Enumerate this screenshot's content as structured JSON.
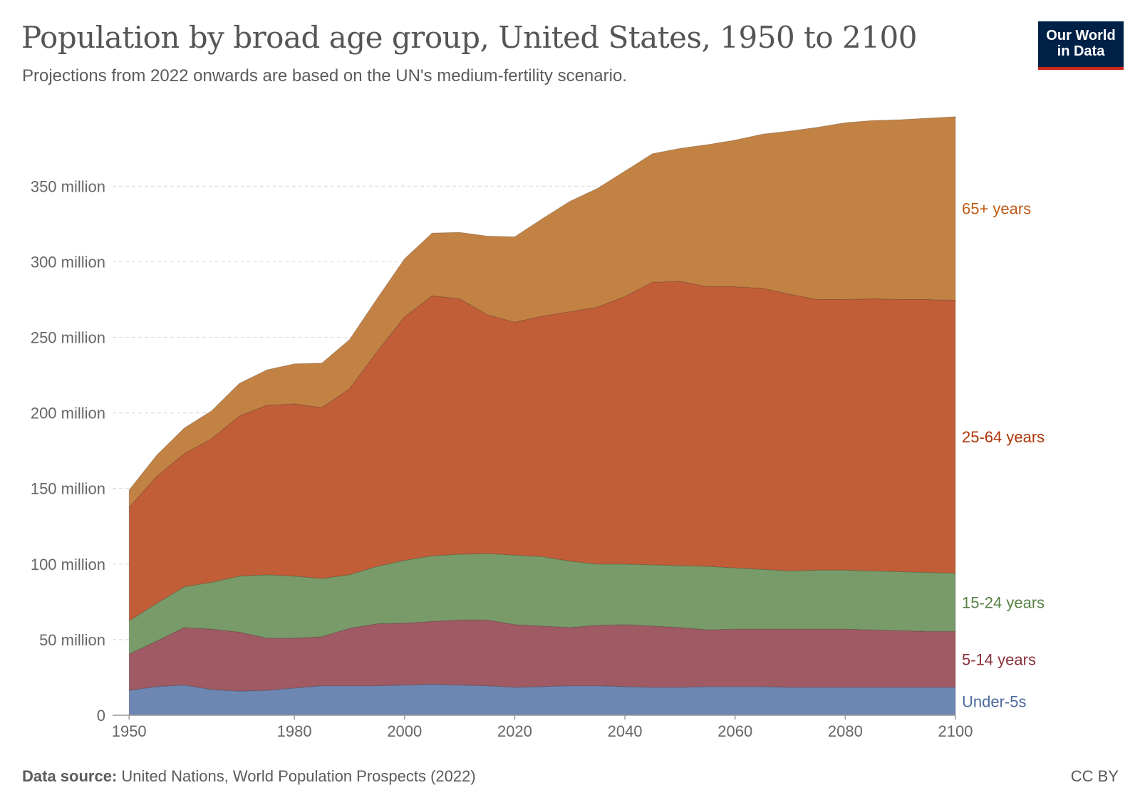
{
  "header": {
    "title": "Population by broad age group, United States, 1950 to 2100",
    "subtitle": "Projections from 2022 onwards are based on the UN's medium-fertility scenario.",
    "logo_line1": "Our World",
    "logo_line2": "in Data"
  },
  "footer": {
    "source_label": "Data source:",
    "source_text": " United Nations, World Population Prospects (2022)",
    "license": "CC BY"
  },
  "colors": {
    "under5": "#6d87b2",
    "age5_14": "#a05a63",
    "age15_24": "#789b69",
    "age25_64": "#c15e38",
    "age65plus": "#c28244",
    "label_under5": "#4c6a9c",
    "label_5_14": "#883039",
    "label_15_24": "#578145",
    "label_25_64": "#b13507",
    "label_65plus": "#be5915"
  },
  "chart_data": {
    "type": "area",
    "stacked": true,
    "title": "Population by broad age group, United States, 1950 to 2100",
    "x": [
      1950,
      1955,
      1960,
      1965,
      1970,
      1975,
      1980,
      1985,
      1990,
      1995,
      2000,
      2005,
      2010,
      2015,
      2020,
      2025,
      2030,
      2035,
      2040,
      2045,
      2050,
      2055,
      2060,
      2065,
      2070,
      2075,
      2080,
      2085,
      2090,
      2095,
      2100
    ],
    "xticks": [
      "1950",
      "1980",
      "2000",
      "2020",
      "2040",
      "2060",
      "2080",
      "2100"
    ],
    "yticks": [
      "0",
      "50 million",
      "100 million",
      "150 million",
      "200 million",
      "250 million",
      "300 million",
      "350 million"
    ],
    "ylim": [
      0,
      394
    ],
    "grid": true,
    "legend": "inline-right",
    "series": [
      {
        "name": "Under-5s",
        "values": [
          16.5,
          19,
          20,
          17,
          16,
          16.5,
          18,
          19.5,
          19.5,
          19.5,
          20,
          20.5,
          20,
          19.5,
          18.5,
          19,
          19.5,
          19.5,
          19,
          18.5,
          18.5,
          19,
          19,
          19,
          18.5,
          18.5,
          18.5,
          18.5,
          18.5,
          18.5,
          18.5
        ]
      },
      {
        "name": "5-14 years",
        "values": [
          24,
          30,
          38,
          40,
          39,
          34.5,
          33,
          32.5,
          38,
          41,
          41,
          41.5,
          43,
          43.5,
          41.5,
          40,
          38.5,
          40,
          41,
          40.5,
          39.5,
          37.5,
          38,
          38,
          38.5,
          38.5,
          38.5,
          38,
          37.5,
          37,
          37
        ]
      },
      {
        "name": "15-24 years",
        "values": [
          22,
          25,
          27,
          31,
          37,
          42,
          41,
          38.5,
          35.5,
          38,
          41.5,
          43.5,
          43.5,
          44,
          46,
          46,
          44,
          40.5,
          40,
          40.5,
          41,
          42,
          40.5,
          39.5,
          38.5,
          39,
          39,
          39,
          39,
          39,
          38.5
        ]
      },
      {
        "name": "25-64 years",
        "values": [
          75,
          84,
          88,
          95,
          106,
          112,
          114,
          113,
          123,
          142,
          161,
          172,
          169,
          158,
          154,
          159,
          165,
          170,
          177,
          187,
          188,
          185,
          186,
          186,
          183,
          179,
          179,
          180,
          180,
          180.5,
          180.5
        ]
      },
      {
        "name": "65+ years",
        "values": [
          11.5,
          14,
          17,
          18.5,
          21.5,
          23.5,
          26.5,
          29.5,
          32.5,
          35,
          38.5,
          41.5,
          44,
          52,
          56.5,
          64.5,
          73,
          78.5,
          83,
          85,
          88,
          94,
          97,
          102,
          108,
          114,
          117,
          118,
          119,
          120,
          121.5
        ]
      }
    ]
  }
}
